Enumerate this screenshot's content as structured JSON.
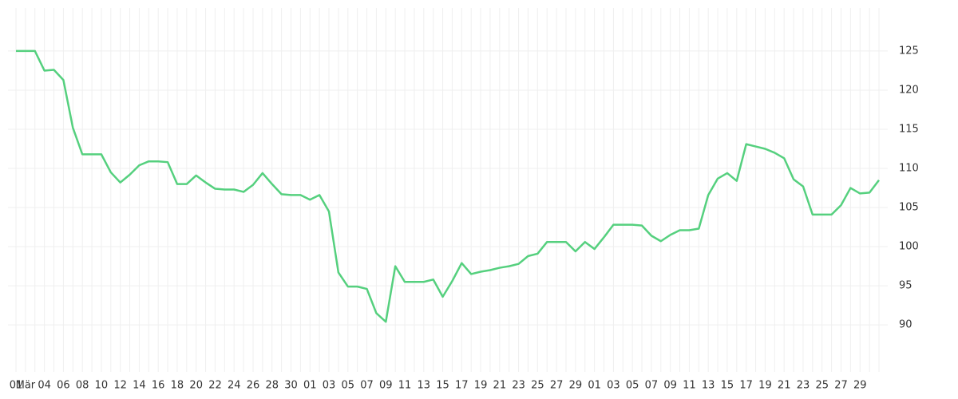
{
  "chart_data": {
    "type": "line",
    "categories": [
      "01",
      "Mär",
      null,
      "04",
      null,
      "06",
      null,
      "08",
      null,
      "10",
      null,
      "12",
      null,
      "14",
      null,
      "16",
      null,
      "18",
      null,
      "20",
      null,
      "22",
      null,
      "24",
      null,
      "26",
      null,
      "28",
      null,
      "30",
      null,
      "01",
      null,
      "03",
      null,
      "05",
      null,
      "07",
      null,
      "09",
      null,
      "11",
      null,
      "13",
      null,
      "15",
      null,
      "17",
      null,
      "19",
      null,
      "21",
      null,
      "23",
      null,
      "25",
      null,
      "27",
      null,
      "29",
      null,
      "01",
      null,
      "03",
      null,
      "05",
      null,
      "07",
      null,
      "09",
      null,
      "11",
      null,
      "13",
      null,
      "15",
      null,
      "17",
      null,
      "19",
      null,
      "21",
      null,
      "23",
      null,
      "25",
      null,
      "27",
      null,
      "29",
      null,
      null
    ],
    "series": [
      {
        "color": "#55d07e",
        "values": [
          125,
          125,
          125,
          122.5,
          122.6,
          121.3,
          115.2,
          111.8,
          111.8,
          111.8,
          109.5,
          108.2,
          109.2,
          110.4,
          110.9,
          110.9,
          110.8,
          108.0,
          108.0,
          109.1,
          108.2,
          107.4,
          107.3,
          107.3,
          107.0,
          107.9,
          109.4,
          108.0,
          106.7,
          106.6,
          106.6,
          106.0,
          106.6,
          104.5,
          96.7,
          94.9,
          94.9,
          94.6,
          91.5,
          90.4,
          97.5,
          95.5,
          95.5,
          95.5,
          95.8,
          93.6,
          95.6,
          97.9,
          96.5,
          96.8,
          97.0,
          97.3,
          97.5,
          97.8,
          98.8,
          99.1,
          100.6,
          100.6,
          100.6,
          99.4,
          100.6,
          99.7,
          101.2,
          102.8,
          102.8,
          102.8,
          102.7,
          101.4,
          100.7,
          101.5,
          102.1,
          102.1,
          102.3,
          106.6,
          108.7,
          109.4,
          108.4,
          113.1,
          112.8,
          112.5,
          112.0,
          111.3,
          108.6,
          107.7,
          104.1,
          104.1,
          104.1,
          105.3,
          107.5,
          106.8,
          106.9,
          108.5
        ]
      }
    ],
    "ylim": [
      84,
      130.5
    ],
    "yticks": [
      90,
      95,
      100,
      105,
      110,
      115,
      120,
      125
    ],
    "grid": true
  }
}
